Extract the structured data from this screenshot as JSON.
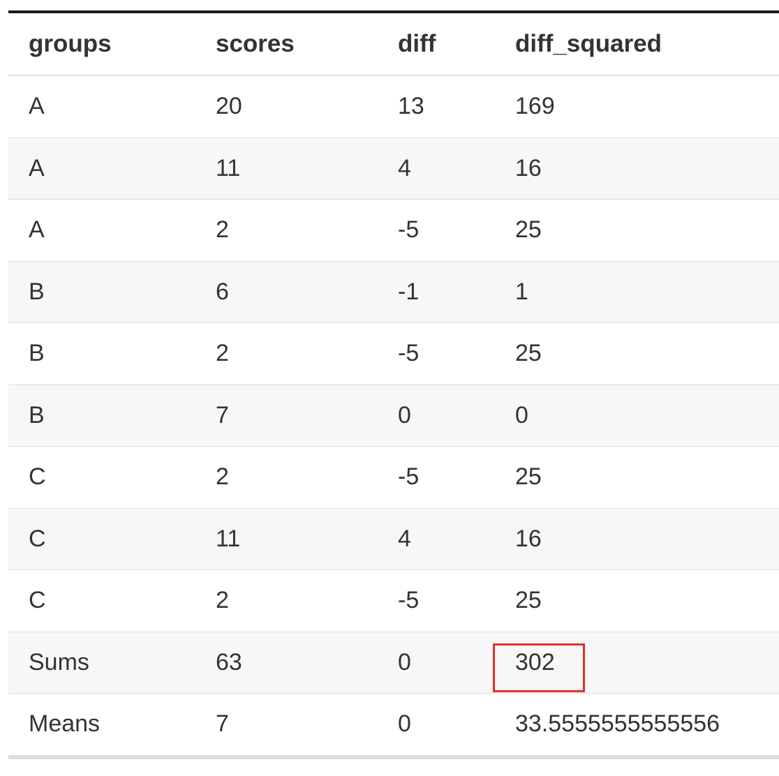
{
  "table": {
    "columns": [
      "groups",
      "scores",
      "diff",
      "diff_squared"
    ],
    "rows": [
      [
        "A",
        "20",
        "13",
        "169"
      ],
      [
        "A",
        "11",
        "4",
        "16"
      ],
      [
        "A",
        "2",
        "-5",
        "25"
      ],
      [
        "B",
        "6",
        "-1",
        "1"
      ],
      [
        "B",
        "2",
        "-5",
        "25"
      ],
      [
        "B",
        "7",
        "0",
        "0"
      ],
      [
        "C",
        "2",
        "-5",
        "25"
      ],
      [
        "C",
        "11",
        "4",
        "16"
      ],
      [
        "C",
        "2",
        "-5",
        "25"
      ],
      [
        "Sums",
        "63",
        "0",
        "302"
      ],
      [
        "Means",
        "7",
        "0",
        "33.5555555555556"
      ]
    ]
  },
  "highlight": {
    "target": "Sums diff_squared",
    "color": "#e0302b"
  },
  "colors": {
    "header_rule": "#1a1a1a",
    "row_stripe": "#f7f7f7",
    "border": "#dddddd",
    "text": "#333333"
  }
}
